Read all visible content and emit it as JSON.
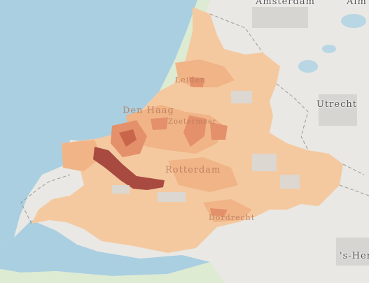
{
  "map": {
    "basemap_colors": {
      "water": "#a9cfe0",
      "land": "#e9e8e4",
      "urban": "#d6d5d1",
      "nature": "#dcebd2",
      "border": "#9b9b9b"
    },
    "choropleth_colors": [
      "#f5c9a0",
      "#f0b487",
      "#e4906a",
      "#c8654a",
      "#a84a3f"
    ],
    "labels": {
      "amsterdam": "Amsterdam",
      "utrecht": "Utrecht",
      "den_haag": "Den Haag",
      "leiden": "Leiden",
      "zoetermeer": "Zoetermeer",
      "rotterdam": "Rotterdam",
      "dordrecht": "Dordrecht",
      "s_hertogenbosch": "'s-Her",
      "almere": "Alm"
    }
  }
}
